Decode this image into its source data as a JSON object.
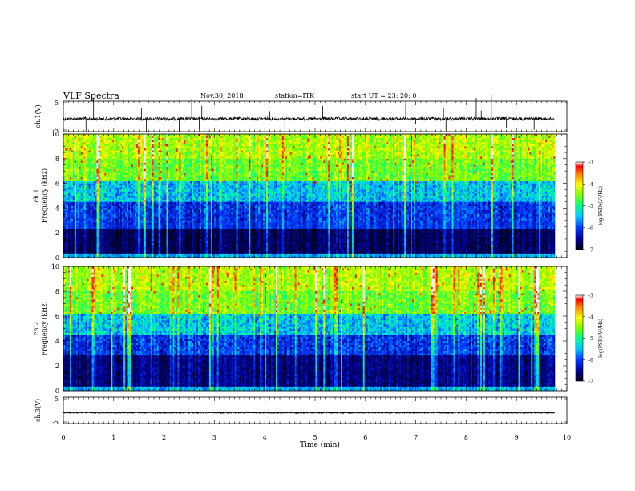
{
  "header": {
    "title": "VLF Spectra",
    "date": "Nov.30, 2018",
    "station": "station=ITK",
    "start": "start  UT  =   23: 20: 0"
  },
  "chart_data": [
    {
      "type": "line",
      "panel": "ch1-waveform",
      "ylabel": "ch.1(V)",
      "yticks": [
        "5",
        "-5"
      ],
      "ylim": [
        -5,
        5
      ],
      "xlim": [
        0,
        10
      ]
    },
    {
      "type": "heatmap",
      "panel": "ch1-spectrogram",
      "ylabel_line1": "ch.1",
      "ylabel_line2": "Frequency (kHz)",
      "yticks": [
        "0",
        "2",
        "4",
        "6",
        "8",
        "10"
      ],
      "ylim": [
        0,
        10
      ],
      "xlim": [
        0,
        10
      ],
      "colorbar": {
        "label": "log(PSD)(V²/Hz)",
        "ticks": [
          "-3",
          "-4",
          "-5",
          "-6",
          "-7"
        ],
        "range": [
          -7,
          -3
        ]
      }
    },
    {
      "type": "heatmap",
      "panel": "ch2-spectrogram",
      "ylabel_line1": "ch.2",
      "ylabel_line2": "Frequency (kHz)",
      "yticks": [
        "0",
        "2",
        "4",
        "6",
        "8",
        "10"
      ],
      "ylim": [
        0,
        10
      ],
      "xlim": [
        0,
        10
      ],
      "colorbar": {
        "label": "log(PSD)(V²/Hz)",
        "ticks": [
          "-3",
          "-4",
          "-5",
          "-6",
          "-7"
        ],
        "range": [
          -7,
          -3
        ]
      }
    },
    {
      "type": "line",
      "panel": "ch3-waveform",
      "ylabel": "ch.3(V)",
      "yticks": [
        "5",
        "-5"
      ],
      "ylim": [
        -5,
        5
      ],
      "xlim": [
        0,
        10
      ]
    }
  ],
  "xaxis": {
    "label": "Time (min)",
    "ticks": [
      "0",
      "1",
      "2",
      "3",
      "4",
      "5",
      "6",
      "7",
      "8",
      "9",
      "10"
    ]
  },
  "colors": {
    "spectrum": [
      "#000014",
      "#0000a0",
      "#0040ff",
      "#00c8ff",
      "#00ff80",
      "#80ff00",
      "#ffff00",
      "#ff8000",
      "#ff0000",
      "#ffffff"
    ]
  }
}
